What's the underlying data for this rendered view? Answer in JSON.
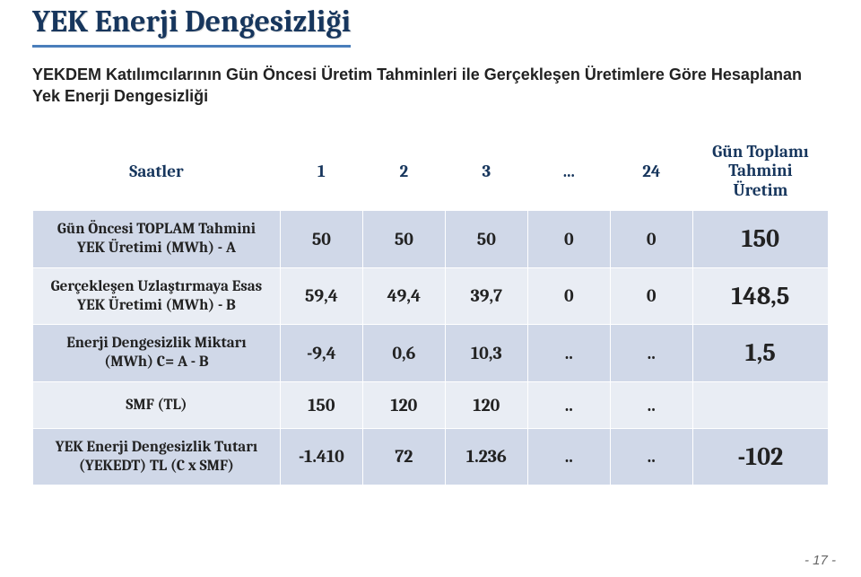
{
  "title": "YEK Enerji Dengesizliği",
  "subtitle": "YEKDEM Katılımcılarının Gün Öncesi Üretim Tahminleri ile Gerçekleşen Üretimlere Göre Hesaplanan Yek Enerji Dengesizliği",
  "colors": {
    "heading": "#17365d",
    "underline": "#4a7ebb",
    "band_a": "#d0d8e8",
    "band_b": "#e9edf4",
    "border": "#ffffff",
    "text": "#222222",
    "page_bg": "#ffffff"
  },
  "typography": {
    "title_fontsize": 34,
    "subtitle_fontsize": 18,
    "header_fontsize": 19,
    "rowlabel_fontsize": 17,
    "cell_fontsize": 20,
    "total_cell_fontsize": 28
  },
  "header": {
    "row_label": "Saatler",
    "h1": "1",
    "h2": "2",
    "h3": "3",
    "hdots": "...",
    "h24": "24",
    "total_l1": "Gün Toplamı",
    "total_l2": "Tahmini",
    "total_l3": "Üretim"
  },
  "rows": [
    {
      "label_l1": "Gün Öncesi TOPLAM Tahmini",
      "label_l2": "YEK Üretimi (MWh) - A",
      "c1": "50",
      "c2": "50",
      "c3": "50",
      "c4": "0",
      "c5": "0",
      "total": "150"
    },
    {
      "label_l1": "Gerçekleşen Uzlaştırmaya Esas",
      "label_l2": "YEK Üretimi (MWh) - B",
      "c1": "59,4",
      "c2": "49,4",
      "c3": "39,7",
      "c4": "0",
      "c5": "0",
      "total": "148,5"
    },
    {
      "label_l1": "Enerji Dengesizlik Miktarı",
      "label_l2": "(MWh) C= A - B",
      "c1": "-9,4",
      "c2": "0,6",
      "c3": "10,3",
      "c4": "..",
      "c5": "..",
      "total": "1,5"
    },
    {
      "label_l1": "SMF (TL)",
      "label_l2": "",
      "c1": "150",
      "c2": "120",
      "c3": "120",
      "c4": "..",
      "c5": "..",
      "total": ""
    },
    {
      "label_l1": "YEK Enerji Dengesizlik Tutarı",
      "label_l2": "(YEKEDT) TL  (C x SMF)",
      "c1": "-1.410",
      "c2": "72",
      "c3": "1.236",
      "c4": "..",
      "c5": "..",
      "total": "-102"
    }
  ],
  "page_number": "- 17 -"
}
